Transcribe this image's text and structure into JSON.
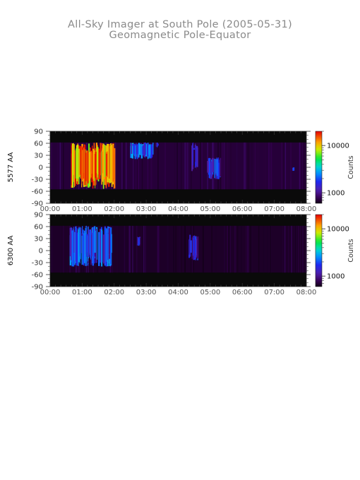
{
  "title": {
    "line1": "All-Sky Imager at South Pole (2005-05-31)",
    "line2": "Geomagnetic Pole-Equator"
  },
  "chart_data": [
    {
      "type": "heatmap",
      "panel": "5577 AA",
      "ylabel": "5577 AA",
      "xlabel": "",
      "x_ticks": [
        "00:00",
        "01:00",
        "02:00",
        "03:00",
        "04:00",
        "05:00",
        "06:00",
        "07:00",
        "08:00"
      ],
      "y_ticks": [
        90,
        60,
        30,
        0,
        -30,
        -60,
        -90
      ],
      "ylim": [
        -90,
        90
      ],
      "xlim_hours": [
        0,
        8
      ],
      "valid_lat_range": [
        -55,
        62
      ],
      "colorbar": {
        "label": "Counts",
        "ticks": [
          10000,
          1000
        ],
        "tick_labels": [
          "10000",
          "1000"
        ],
        "scale": "log",
        "range": [
          600,
          20000
        ]
      },
      "background_counts": 700,
      "features": [
        {
          "t_start_h": 0.65,
          "t_end_h": 2.0,
          "lat_range": [
            -55,
            62
          ],
          "counts": 15000,
          "description_level": "very bright"
        },
        {
          "t_start_h": 2.5,
          "t_end_h": 3.2,
          "lat_range": [
            20,
            62
          ],
          "counts": 2500
        },
        {
          "t_start_h": 3.3,
          "t_end_h": 3.35,
          "lat_range": [
            50,
            62
          ],
          "counts": 2000
        },
        {
          "t_start_h": 4.4,
          "t_end_h": 4.6,
          "lat_range": [
            -10,
            62
          ],
          "counts": 1500
        },
        {
          "t_start_h": 4.9,
          "t_end_h": 5.3,
          "lat_range": [
            -30,
            25
          ],
          "counts": 1800
        },
        {
          "t_start_h": 7.55,
          "t_end_h": 7.6,
          "lat_range": [
            -10,
            0
          ],
          "counts": 1500
        }
      ]
    },
    {
      "type": "heatmap",
      "panel": "6300 AA",
      "ylabel": "6300 AA",
      "xlabel": "",
      "x_ticks": [
        "00:00",
        "01:00",
        "02:00",
        "03:00",
        "04:00",
        "05:00",
        "06:00",
        "07:00",
        "08:00"
      ],
      "y_ticks": [
        90,
        60,
        30,
        0,
        -30,
        -60,
        -90
      ],
      "ylim": [
        -90,
        90
      ],
      "xlim_hours": [
        0,
        8
      ],
      "valid_lat_range": [
        -55,
        62
      ],
      "colorbar": {
        "label": "Counts",
        "ticks": [
          10000,
          1000
        ],
        "tick_labels": [
          "10000",
          "1000"
        ],
        "scale": "log",
        "range": [
          600,
          20000
        ]
      },
      "background_counts": 650,
      "features": [
        {
          "t_start_h": 0.6,
          "t_end_h": 1.9,
          "lat_range": [
            -40,
            62
          ],
          "counts": 2200
        },
        {
          "t_start_h": 2.7,
          "t_end_h": 2.8,
          "lat_range": [
            10,
            35
          ],
          "counts": 1700
        },
        {
          "t_start_h": 4.3,
          "t_end_h": 4.6,
          "lat_range": [
            -25,
            40
          ],
          "counts": 1600
        }
      ]
    }
  ]
}
